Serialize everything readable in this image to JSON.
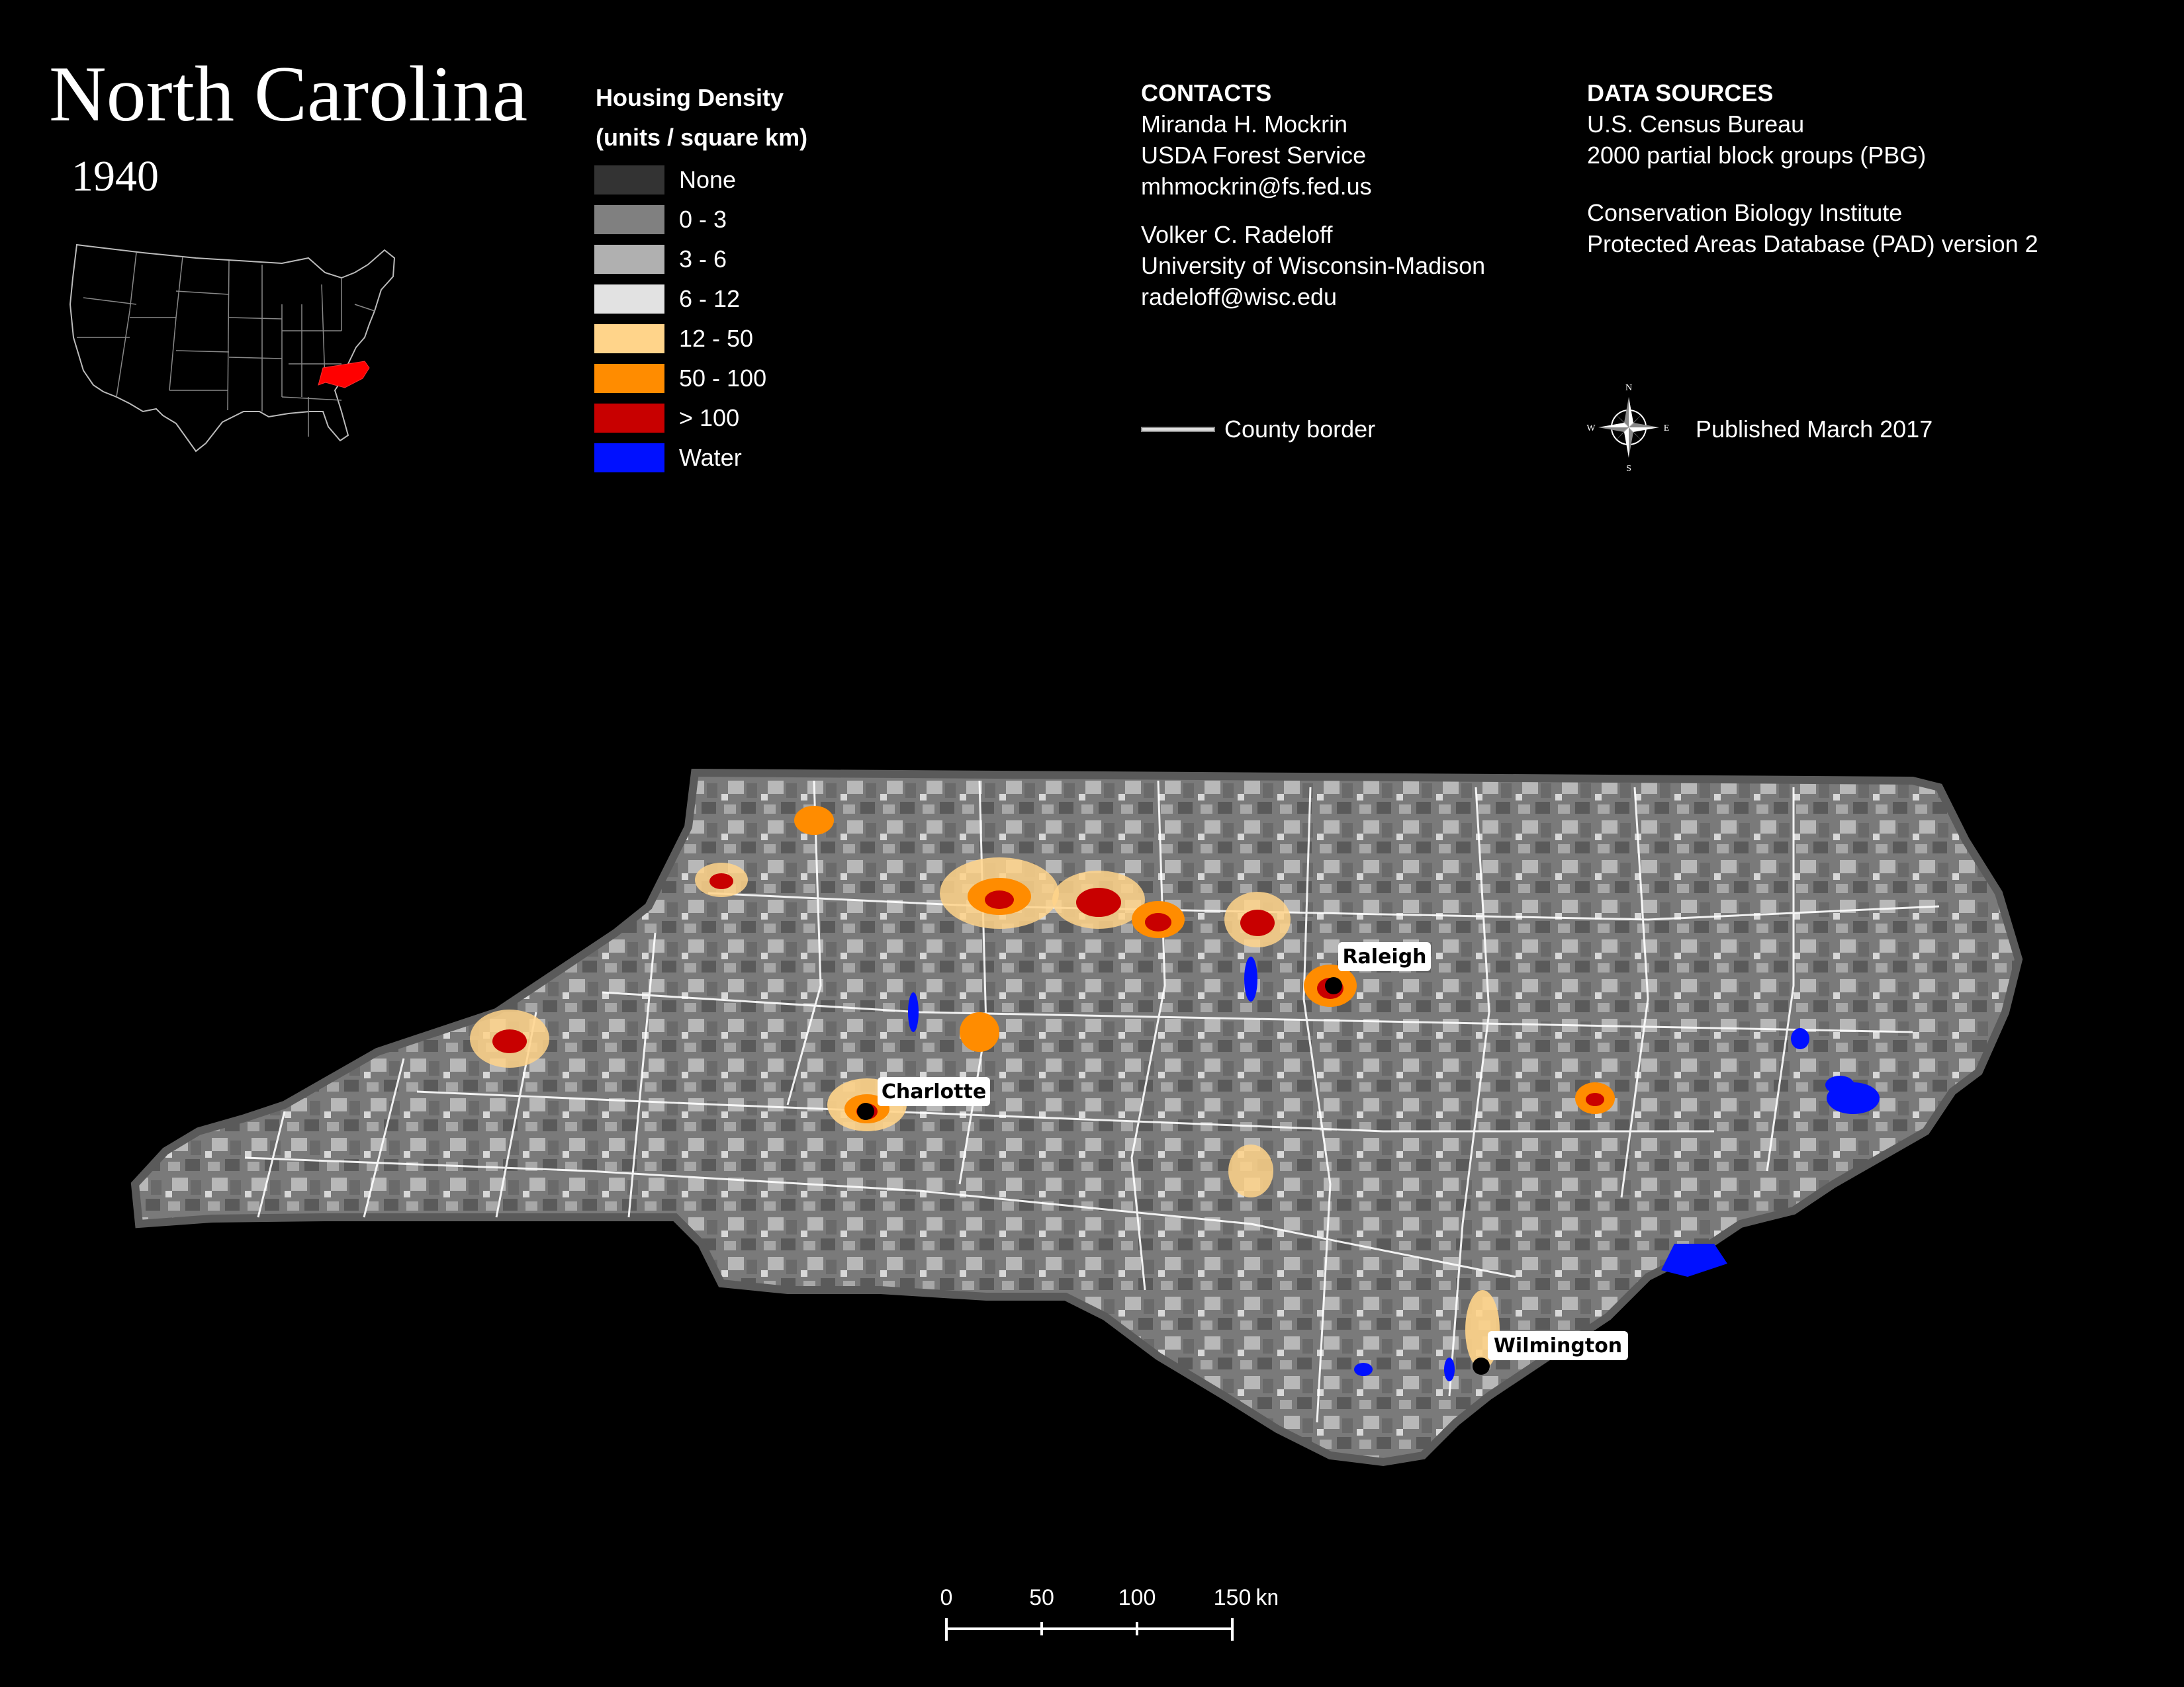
{
  "header": {
    "title": "North Carolina",
    "year": "1940"
  },
  "legend": {
    "title_line1": "Housing Density",
    "title_line2": "(units / square km)",
    "items": [
      {
        "label": "None",
        "color": "#333333"
      },
      {
        "label": "0 - 3",
        "color": "#808080"
      },
      {
        "label": "3 - 6",
        "color": "#b0b0b0"
      },
      {
        "label": "6 - 12",
        "color": "#e2e2e2"
      },
      {
        "label": "12 - 50",
        "color": "#ffd48a"
      },
      {
        "label": "50 - 100",
        "color": "#ff8c00"
      },
      {
        "label": "> 100",
        "color": "#c80000"
      },
      {
        "label": "Water",
        "color": "#0010ff"
      }
    ]
  },
  "contacts": {
    "heading": "CONTACTS",
    "person1": {
      "name": "Miranda H. Mockrin",
      "org": "USDA Forest Service",
      "email": "mhmockrin@fs.fed.us"
    },
    "person2": {
      "name": "Volker C. Radeloff",
      "org": "University of Wisconsin-Madison",
      "email": "radeloff@wisc.edu"
    }
  },
  "sources": {
    "heading": "DATA SOURCES",
    "line1": "U.S. Census Bureau",
    "line2": "2000 partial block groups (PBG)",
    "line3": "Conservation Biology Institute",
    "line4": "Protected Areas Database (PAD) version 2"
  },
  "county_legend": {
    "label": "County border"
  },
  "published": "Published March 2017",
  "compass": {
    "n": "N",
    "s": "S",
    "e": "E",
    "w": "W"
  },
  "cities": [
    {
      "name": "Raleigh"
    },
    {
      "name": "Charlotte"
    },
    {
      "name": "Wilmington"
    }
  ],
  "scale_bar": {
    "ticks": [
      "0",
      "50",
      "100",
      "150"
    ],
    "unit": "km"
  },
  "colors": {
    "highlight_state": "#ff0000",
    "state_fill": "#6e6e6e",
    "state_outline": "#5a5a5a",
    "county_border": "#ffffff"
  }
}
